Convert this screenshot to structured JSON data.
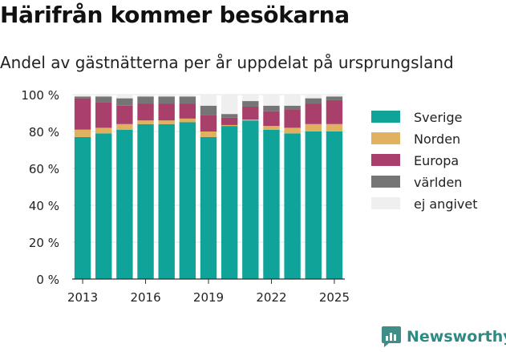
{
  "title": "Härifrån kommer besökarna",
  "subtitle": "Andel av gästnätterna per år uppdelat på ursprungsland",
  "brand": "Newsworthy",
  "chart_data": {
    "type": "bar",
    "stacked": true,
    "x": [
      2013,
      2014,
      2015,
      2016,
      2017,
      2018,
      2019,
      2020,
      2021,
      2022,
      2023,
      2024,
      2025
    ],
    "x_tick_labels": [
      "2013",
      "2016",
      "2019",
      "2022",
      "2025"
    ],
    "x_tick_values": [
      2013,
      2016,
      2019,
      2022,
      2025
    ],
    "y_tick_labels": [
      "0 %",
      "20 %",
      "40 %",
      "60 %",
      "80 %",
      "100 %"
    ],
    "ylim": [
      0,
      100
    ],
    "grid": true,
    "legend_position": "right",
    "series": [
      {
        "name": "Sverige",
        "color": "#0fa39a",
        "values": [
          77,
          79,
          81,
          84,
          84,
          85,
          77,
          83,
          86,
          81,
          79,
          80,
          80
        ]
      },
      {
        "name": "Norden",
        "color": "#e0b15e",
        "values": [
          4,
          3,
          3,
          2,
          2,
          2,
          3,
          0.5,
          0.5,
          2,
          3,
          4,
          4
        ]
      },
      {
        "name": "Europa",
        "color": "#a9406c",
        "values": [
          17,
          14,
          10,
          9,
          9,
          8,
          9,
          4,
          7,
          8,
          10,
          11,
          13
        ]
      },
      {
        "name": "världen",
        "color": "#757575",
        "values": [
          1,
          3,
          4,
          4,
          4,
          4,
          5,
          2,
          3,
          3,
          2,
          3,
          2
        ]
      },
      {
        "name": "ej angivet",
        "color": "#efefef",
        "values": [
          1,
          1,
          2,
          1,
          1,
          1,
          6,
          10.5,
          3.5,
          6,
          6,
          2,
          1
        ]
      }
    ]
  }
}
